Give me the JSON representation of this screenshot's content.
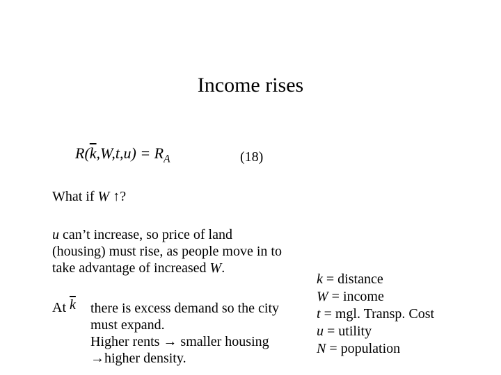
{
  "title": "Income rises",
  "equation": {
    "func_name": "R",
    "lparen": "(",
    "arg_k": "k",
    "comma1": ",",
    "arg_W": "W",
    "comma2": ",",
    "arg_t": "t",
    "comma3": ",",
    "arg_u": "u",
    "rparen": ")",
    "eq": " = ",
    "rhs_R": "R",
    "rhs_A": "A",
    "number": "(18)"
  },
  "what_if": {
    "prefix": "What if ",
    "var": "W",
    "space": " ",
    "arrow": "↑",
    "suffix": "?"
  },
  "paragraph1": {
    "u_var": "u",
    "text1": " can’t increase, so price of land (housing) must rise, as people move in to take advantage of increased ",
    "w_var": "W",
    "text2": "."
  },
  "at": {
    "label": "At",
    "kbar": "k"
  },
  "paragraph2": {
    "line1": "there is excess demand so the city must expand.",
    "line2a": "Higher rents ",
    "arrow1": "→",
    "line2b": " smaller housing ",
    "arrow2": "→",
    "line2c": "higher density."
  },
  "legend": {
    "k_var": "k",
    "k_def": " = distance",
    "W_var": "W",
    "W_def": " = income",
    "t_var": "t",
    "t_def": " = mgl. Transp. Cost",
    "u_var": "u",
    "u_def": " = utility",
    "N_var": "N",
    "N_def": " = population"
  }
}
